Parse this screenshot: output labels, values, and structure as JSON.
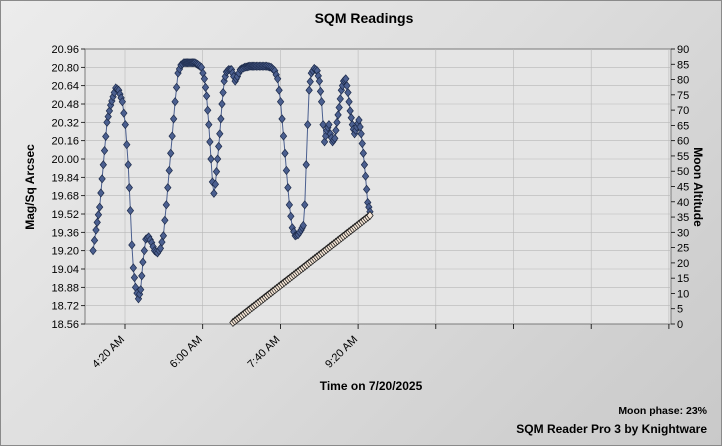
{
  "chart_data": {
    "type": "scatter",
    "title": "SQM Readings",
    "xlabel": "Time on 7/20/2025",
    "ylabel": "Mag/Sq Arcsec",
    "y2label": "Moon Altitude",
    "x_ticks": [
      "4:20 AM",
      "6:00 AM",
      "7:40 AM",
      "9:20 AM",
      "",
      "",
      "",
      ""
    ],
    "x_range_minutes": [
      200,
      1000
    ],
    "ylim": [
      18.56,
      20.96
    ],
    "y_ticks": [
      18.56,
      18.72,
      18.88,
      19.04,
      19.2,
      19.36,
      19.52,
      19.68,
      19.84,
      20.0,
      20.16,
      20.32,
      20.48,
      20.64,
      20.8,
      20.96
    ],
    "y2lim": [
      0,
      90
    ],
    "y2_ticks": [
      0,
      5,
      10,
      15,
      20,
      25,
      30,
      35,
      40,
      45,
      50,
      55,
      60,
      65,
      70,
      75,
      80,
      85,
      90
    ],
    "grid": true,
    "series": [
      {
        "axis": "left",
        "color": "#4b5f8f",
        "keypoints": [
          [
            211,
            19.2
          ],
          [
            215,
            19.38
          ],
          [
            220,
            19.58
          ],
          [
            225,
            19.95
          ],
          [
            230,
            20.32
          ],
          [
            235,
            20.47
          ],
          [
            240,
            20.58
          ],
          [
            242,
            20.62
          ],
          [
            246,
            20.6
          ],
          [
            251,
            20.5
          ],
          [
            255,
            20.3
          ],
          [
            259,
            19.95
          ],
          [
            262,
            19.55
          ],
          [
            264,
            19.25
          ],
          [
            266,
            19.05
          ],
          [
            269,
            18.88
          ],
          [
            273,
            18.78
          ],
          [
            276,
            18.86
          ],
          [
            279,
            19.1
          ],
          [
            283,
            19.3
          ],
          [
            287,
            19.32
          ],
          [
            291,
            19.27
          ],
          [
            295,
            19.2
          ],
          [
            299,
            19.18
          ],
          [
            303,
            19.22
          ],
          [
            307,
            19.33
          ],
          [
            311,
            19.6
          ],
          [
            315,
            19.9
          ],
          [
            319,
            20.2
          ],
          [
            323,
            20.5
          ],
          [
            327,
            20.75
          ],
          [
            331,
            20.82
          ],
          [
            335,
            20.84
          ],
          [
            340,
            20.84
          ],
          [
            345,
            20.84
          ],
          [
            350,
            20.84
          ],
          [
            355,
            20.82
          ],
          [
            359,
            20.8
          ],
          [
            363,
            20.7
          ],
          [
            366,
            20.55
          ],
          [
            369,
            20.3
          ],
          [
            372,
            20.0
          ],
          [
            374,
            19.8
          ],
          [
            376,
            19.7
          ],
          [
            378,
            19.78
          ],
          [
            381,
            20.0
          ],
          [
            384,
            20.22
          ],
          [
            387,
            20.48
          ],
          [
            390,
            20.68
          ],
          [
            393,
            20.76
          ],
          [
            396,
            20.78
          ],
          [
            400,
            20.78
          ],
          [
            403,
            20.72
          ],
          [
            405,
            20.68
          ],
          [
            408,
            20.72
          ],
          [
            412,
            20.78
          ],
          [
            418,
            20.8
          ],
          [
            425,
            20.81
          ],
          [
            432,
            20.81
          ],
          [
            440,
            20.81
          ],
          [
            448,
            20.81
          ],
          [
            454,
            20.8
          ],
          [
            459,
            20.77
          ],
          [
            463,
            20.7
          ],
          [
            467,
            20.5
          ],
          [
            471,
            20.2
          ],
          [
            475,
            19.9
          ],
          [
            479,
            19.6
          ],
          [
            483,
            19.4
          ],
          [
            487,
            19.33
          ],
          [
            491,
            19.34
          ],
          [
            495,
            19.38
          ],
          [
            498,
            19.42
          ],
          [
            500,
            19.6
          ],
          [
            502,
            19.95
          ],
          [
            504,
            20.3
          ],
          [
            506,
            20.6
          ],
          [
            509,
            20.75
          ],
          [
            513,
            20.79
          ],
          [
            517,
            20.77
          ],
          [
            520,
            20.68
          ],
          [
            523,
            20.5
          ],
          [
            525,
            20.3
          ],
          [
            527,
            20.15
          ],
          [
            530,
            20.25
          ],
          [
            533,
            20.3
          ],
          [
            535,
            20.22
          ],
          [
            538,
            20.15
          ],
          [
            541,
            20.18
          ],
          [
            544,
            20.32
          ],
          [
            547,
            20.45
          ],
          [
            550,
            20.6
          ],
          [
            553,
            20.68
          ],
          [
            556,
            20.7
          ],
          [
            559,
            20.58
          ],
          [
            562,
            20.42
          ],
          [
            565,
            20.3
          ],
          [
            568,
            20.22
          ],
          [
            571,
            20.28
          ],
          [
            574,
            20.34
          ],
          [
            577,
            20.22
          ],
          [
            580,
            20.05
          ],
          [
            583,
            19.85
          ],
          [
            586,
            19.62
          ],
          [
            589,
            19.54
          ]
        ]
      },
      {
        "axis": "right",
        "color": "#f4e4d4",
        "keypoints": [
          [
            402,
            0.5
          ],
          [
            589,
            35.5
          ]
        ]
      }
    ]
  },
  "footer": {
    "moon_phase": "Moon phase: 23%",
    "app_name": "SQM Reader Pro 3 by Knightware"
  }
}
